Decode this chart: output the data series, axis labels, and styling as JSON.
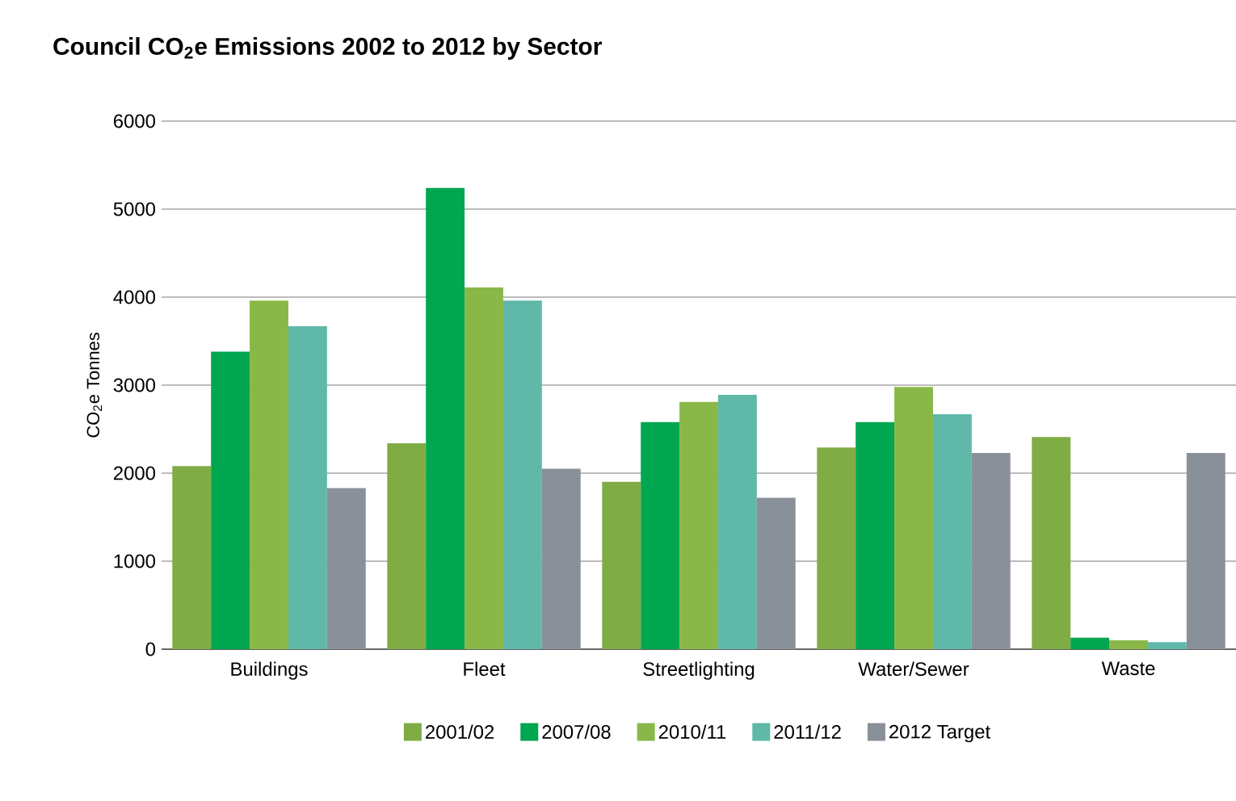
{
  "chart_data": {
    "type": "bar",
    "title": "Council CO$_{2}$e Emissions 2002 to 2012 by Sector",
    "ylabel": "CO$_{2}$e Tonnes",
    "categories": [
      "Buildings",
      "Fleet",
      "Streetlighting",
      "Water/Sewer",
      "Waste"
    ],
    "series": [
      {
        "name": "2001/02",
        "color": "#7fac45",
        "values": [
          2080,
          2340,
          1900,
          2290,
          2410
        ]
      },
      {
        "name": "2007/08",
        "color": "#00a650",
        "values": [
          3380,
          5240,
          2580,
          2580,
          130
        ]
      },
      {
        "name": "2010/11",
        "color": "#8ab848",
        "values": [
          3960,
          4110,
          2810,
          2980,
          100
        ]
      },
      {
        "name": "2011/12",
        "color": "#5fb8a8",
        "values": [
          3670,
          3960,
          2890,
          2670,
          80
        ]
      },
      {
        "name": "2012 Target",
        "color": "#8a9099",
        "values": [
          1830,
          2050,
          1720,
          2230,
          2230
        ]
      }
    ],
    "ylim": [
      0,
      6000
    ],
    "yticks": [
      0,
      1000,
      2000,
      3000,
      4000,
      5000,
      6000
    ],
    "grid": "y",
    "legend": "bottom"
  }
}
